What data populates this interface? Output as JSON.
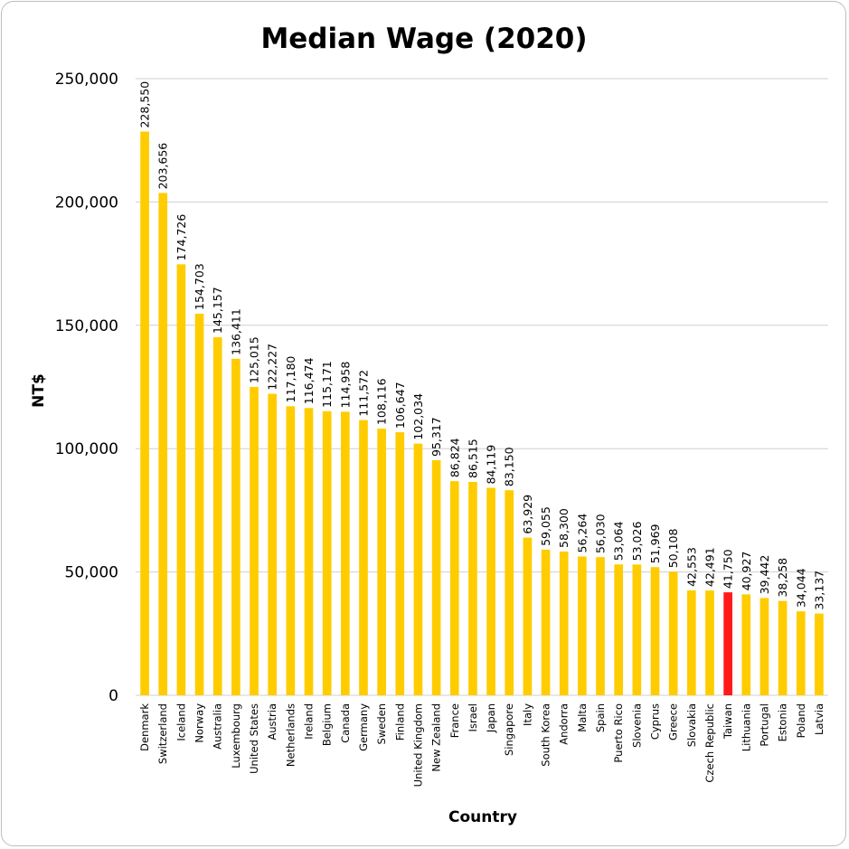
{
  "chart_data": {
    "type": "bar",
    "title": "Median Wage (2020)",
    "xlabel": "Country",
    "ylabel": "NT$",
    "ylim": [
      0,
      250000
    ],
    "yticks": [
      0,
      50000,
      100000,
      150000,
      200000,
      250000
    ],
    "ytick_labels": [
      "0",
      "50,000",
      "100,000",
      "150,000",
      "200,000",
      "250,000"
    ],
    "grid": true,
    "bar_color": "#FFCC00",
    "highlight_color": "#FF1A1A",
    "highlight_category": "Taiwan",
    "categories": [
      "Denmark",
      "Switzerland",
      "Iceland",
      "Norway",
      "Australia",
      "Luxembourg",
      "United States",
      "Austria",
      "Netherlands",
      "Ireland",
      "Belgium",
      "Canada",
      "Germany",
      "Sweden",
      "Finland",
      "United Kingdom",
      "New Zealand",
      "France",
      "Israel",
      "Japan",
      "Singapore",
      "Italy",
      "South Korea",
      "Andorra",
      "Malta",
      "Spain",
      "Puerto Rico",
      "Slovenia",
      "Cyprus",
      "Greece",
      "Slovakia",
      "Czech Republic",
      "Taiwan",
      "Lithuania",
      "Portugal",
      "Estonia",
      "Poland",
      "Latvia"
    ],
    "values": [
      228550,
      203656,
      174726,
      154703,
      145157,
      136411,
      125015,
      122227,
      117180,
      116474,
      115171,
      114958,
      111572,
      108116,
      106647,
      102034,
      95317,
      86824,
      86515,
      84119,
      83150,
      63929,
      59055,
      58300,
      56264,
      56030,
      53064,
      53026,
      51969,
      50108,
      42553,
      42491,
      41750,
      40927,
      39442,
      38258,
      34044,
      33137
    ],
    "value_labels": [
      "228,550",
      "203,656",
      "174,726",
      "154,703",
      "145,157",
      "136,411",
      "125,015",
      "122,227",
      "117,180",
      "116,474",
      "115,171",
      "114,958",
      "111,572",
      "108,116",
      "106,647",
      "102,034",
      "95,317",
      "86,824",
      "86,515",
      "84,119",
      "83,150",
      "63,929",
      "59,055",
      "58,300",
      "56,264",
      "56,030",
      "53,064",
      "53,026",
      "51,969",
      "50,108",
      "42,553",
      "42,491",
      "41,750",
      "40,927",
      "39,442",
      "38,258",
      "34,044",
      "33,137"
    ]
  }
}
